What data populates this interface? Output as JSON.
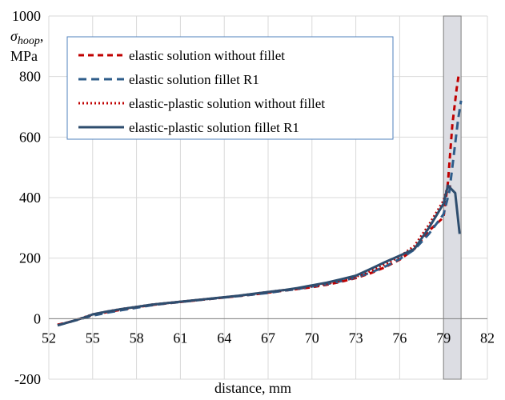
{
  "chart_data": {
    "type": "line",
    "xlabel": "distance, mm",
    "ylabel_symbol": "σ",
    "ylabel_subscript": "hoop",
    "ylabel_suffix": ",",
    "ylabel_unit": "MPa",
    "xlim": [
      52,
      82
    ],
    "ylim": [
      -200,
      1000
    ],
    "xticks": [
      52,
      55,
      58,
      61,
      64,
      67,
      70,
      73,
      76,
      79,
      82
    ],
    "yticks": [
      -200,
      0,
      200,
      400,
      600,
      800,
      1000
    ],
    "grid": true,
    "legend_position": "top-left",
    "shaded_region": {
      "x": [
        79,
        80.2
      ],
      "color": "#dcdde3"
    },
    "series": [
      {
        "name": "elastic solution without fillet",
        "color": "#c00000",
        "dash": "7 5",
        "x": [
          52.6,
          53.5,
          54.5,
          55,
          56,
          57,
          58,
          59,
          60,
          61,
          62,
          63,
          64,
          65,
          66,
          67,
          68,
          69,
          70,
          71,
          72,
          73,
          74,
          75,
          76,
          77,
          78,
          79,
          79.3,
          79.6,
          79.9,
          80.05
        ],
        "y": [
          -20,
          -10,
          5,
          12,
          22,
          30,
          38,
          45,
          50,
          55,
          60,
          65,
          70,
          75,
          80,
          86,
          92,
          98,
          104,
          112,
          122,
          134,
          150,
          170,
          195,
          230,
          290,
          335,
          450,
          640,
          760,
          810
        ]
      },
      {
        "name": "elastic solution fillet R1",
        "color": "#2e5c8a",
        "dash": "10 6",
        "x": [
          52.6,
          53.5,
          54.5,
          55,
          56,
          57,
          58,
          59,
          60,
          61,
          62,
          63,
          64,
          65,
          66,
          67,
          68,
          69,
          70,
          71,
          72,
          73,
          74,
          75,
          76,
          77,
          78,
          79,
          79.4,
          79.7,
          80.0,
          80.2
        ],
        "y": [
          -22,
          -10,
          3,
          10,
          20,
          28,
          36,
          44,
          50,
          55,
          60,
          65,
          70,
          75,
          80,
          85,
          92,
          98,
          106,
          114,
          124,
          136,
          152,
          172,
          197,
          228,
          280,
          345,
          420,
          540,
          660,
          720
        ]
      },
      {
        "name": "elastic-plastic solution without fillet",
        "color": "#c00000",
        "dash": "2 3",
        "x": [
          52.6,
          53.5,
          54.5,
          55,
          56,
          57,
          58,
          59,
          60,
          61,
          62,
          63,
          64,
          65,
          66,
          67,
          68,
          69,
          70,
          71,
          72,
          73,
          74,
          75,
          76,
          77,
          78,
          79,
          79.3,
          79.6
        ],
        "y": [
          -20,
          -10,
          6,
          14,
          24,
          32,
          39,
          46,
          51,
          56,
          61,
          66,
          71,
          76,
          82,
          88,
          94,
          100,
          108,
          116,
          126,
          138,
          158,
          180,
          205,
          240,
          310,
          390,
          440,
          430
        ]
      },
      {
        "name": "elastic-plastic solution fillet R1",
        "color": "#2e4d6e",
        "dash": "",
        "x": [
          52.6,
          53.5,
          54.5,
          55,
          56,
          57,
          58,
          59,
          60,
          61,
          62,
          63,
          64,
          65,
          66,
          67,
          68,
          69,
          70,
          71,
          72,
          73,
          74,
          75,
          76,
          77,
          78,
          79,
          79.3,
          79.8,
          80.1
        ],
        "y": [
          -22,
          -10,
          5,
          14,
          24,
          32,
          39,
          46,
          51,
          56,
          61,
          66,
          71,
          76,
          82,
          88,
          94,
          101,
          110,
          119,
          130,
          142,
          164,
          187,
          208,
          230,
          300,
          380,
          440,
          415,
          280
        ]
      }
    ]
  }
}
